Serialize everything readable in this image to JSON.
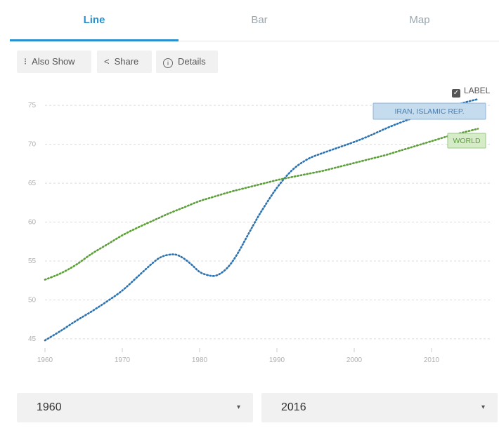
{
  "tabs": [
    {
      "label": "Line",
      "active": true
    },
    {
      "label": "Bar",
      "active": false
    },
    {
      "label": "Map",
      "active": false
    }
  ],
  "toolbar": {
    "also_show": {
      "label": "Also Show",
      "icon": "vertical-dots-icon"
    },
    "share": {
      "label": "Share",
      "icon": "share-icon"
    },
    "details": {
      "label": "Details",
      "icon": "info-icon"
    }
  },
  "label_toggle": {
    "label": "LABEL",
    "checked": true
  },
  "range": {
    "start": "1960",
    "end": "2016"
  },
  "colors": {
    "iran": "#2b72b0",
    "world": "#5c9e3a",
    "accent": "#2a8fce"
  },
  "chart_data": {
    "type": "line",
    "xlim": [
      1960,
      2016
    ],
    "ylim": [
      44,
      77
    ],
    "xticks": [
      1960,
      1970,
      1980,
      1990,
      2000,
      2010
    ],
    "yticks": [
      45,
      50,
      55,
      60,
      65,
      70,
      75
    ],
    "grid": "horizontal dashed",
    "series": [
      {
        "name": "IRAN, ISLAMIC REP.",
        "x": [
          1960,
          1962,
          1964,
          1966,
          1968,
          1970,
          1972,
          1974,
          1975,
          1976,
          1977,
          1978,
          1979,
          1980,
          1981,
          1982,
          1983,
          1984,
          1985,
          1986,
          1987,
          1988,
          1990,
          1992,
          1994,
          1996,
          1998,
          2000,
          2002,
          2004,
          2006,
          2008,
          2010,
          2012,
          2014,
          2016
        ],
        "y": [
          44.8,
          46.0,
          47.3,
          48.5,
          49.8,
          51.2,
          53.0,
          54.8,
          55.5,
          55.8,
          55.8,
          55.3,
          54.5,
          53.6,
          53.2,
          53.1,
          53.6,
          54.6,
          56.1,
          57.9,
          59.7,
          61.4,
          64.4,
          66.7,
          68.1,
          68.9,
          69.6,
          70.3,
          71.1,
          72.0,
          72.8,
          73.5,
          74.1,
          74.7,
          75.3,
          75.8
        ]
      },
      {
        "name": "WORLD",
        "x": [
          1960,
          1962,
          1964,
          1966,
          1968,
          1970,
          1972,
          1974,
          1976,
          1978,
          1980,
          1982,
          1984,
          1986,
          1988,
          1990,
          1992,
          1994,
          1996,
          1998,
          2000,
          2002,
          2004,
          2006,
          2008,
          2010,
          2012,
          2014,
          2016
        ],
        "y": [
          52.6,
          53.4,
          54.5,
          55.9,
          57.1,
          58.3,
          59.3,
          60.2,
          61.1,
          61.9,
          62.7,
          63.3,
          63.9,
          64.4,
          64.9,
          65.4,
          65.8,
          66.2,
          66.6,
          67.1,
          67.6,
          68.1,
          68.6,
          69.2,
          69.8,
          70.4,
          71.0,
          71.5,
          72.0
        ]
      }
    ]
  }
}
